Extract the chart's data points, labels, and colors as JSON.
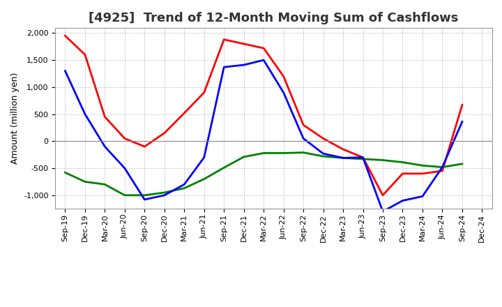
{
  "title": "[4925]  Trend of 12-Month Moving Sum of Cashflows",
  "ylabel": "Amount (million yen)",
  "background_color": "#ffffff",
  "grid_color": "#aaaaaa",
  "x_labels": [
    "Sep-19",
    "Dec-19",
    "Mar-20",
    "Jun-20",
    "Sep-20",
    "Dec-20",
    "Mar-21",
    "Jun-21",
    "Sep-21",
    "Dec-21",
    "Mar-22",
    "Jun-22",
    "Sep-22",
    "Dec-22",
    "Mar-23",
    "Jun-23",
    "Sep-23",
    "Dec-23",
    "Mar-24",
    "Jun-24",
    "Sep-24",
    "Dec-24"
  ],
  "operating_cashflow": [
    1950,
    1600,
    450,
    50,
    -100,
    150,
    520,
    900,
    1880,
    1800,
    1720,
    1200,
    300,
    50,
    -150,
    -300,
    -1000,
    -600,
    -600,
    -550,
    670,
    null
  ],
  "investing_cashflow": [
    -580,
    -750,
    -800,
    -1000,
    -1000,
    -950,
    -870,
    -700,
    -490,
    -290,
    -220,
    -220,
    -210,
    -280,
    -310,
    -330,
    -350,
    -390,
    -450,
    -480,
    -420,
    null
  ],
  "free_cashflow": [
    1300,
    500,
    -100,
    -500,
    -1080,
    -1000,
    -800,
    -300,
    1370,
    1410,
    1500,
    900,
    50,
    -230,
    -310,
    -300,
    -1300,
    -1100,
    -1020,
    -480,
    360,
    null
  ],
  "operating_color": "#ff0000",
  "investing_color": "#008000",
  "free_color": "#0000ff",
  "ylim": [
    -1250,
    2100
  ],
  "yticks": [
    -1000,
    -500,
    0,
    500,
    1000,
    1500,
    2000
  ],
  "line_width": 2.0,
  "title_fontsize": 13,
  "legend_fontsize": 9,
  "tick_fontsize": 8,
  "ylabel_fontsize": 9
}
